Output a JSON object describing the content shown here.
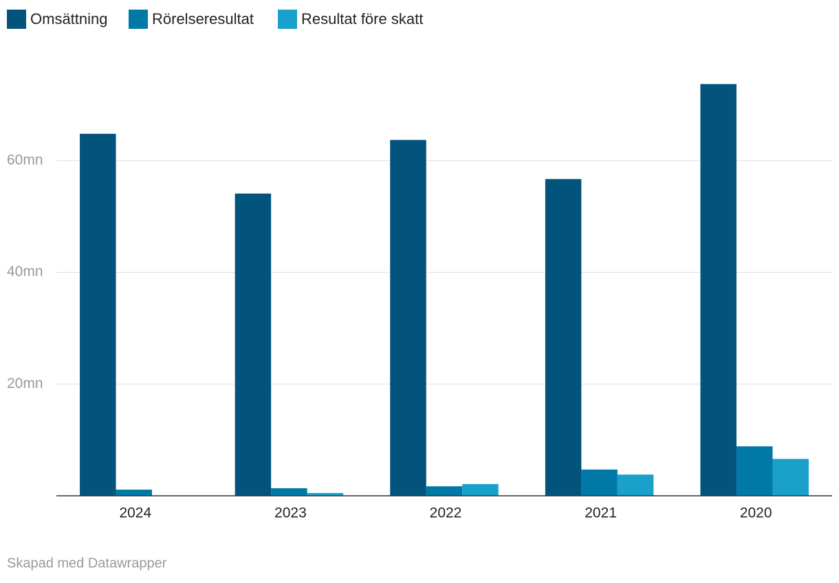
{
  "chart_data": {
    "type": "bar",
    "categories": [
      "2024",
      "2023",
      "2022",
      "2021",
      "2020"
    ],
    "series": [
      {
        "name": "Omsättning",
        "color": "#03547c",
        "values": [
          64.8,
          54.1,
          63.7,
          56.7,
          73.7
        ]
      },
      {
        "name": "Rörelseresultat",
        "color": "#0079a6",
        "values": [
          1.1,
          1.35,
          1.7,
          4.7,
          8.85
        ]
      },
      {
        "name": "Resultat före skatt",
        "color": "#19a1cc",
        "values": [
          0,
          0.5,
          2.1,
          3.8,
          6.6
        ]
      }
    ],
    "ylim": [
      0,
      76.7
    ],
    "yticks": [
      {
        "value": 20,
        "label": "20mn"
      },
      {
        "value": 40,
        "label": "40mn"
      },
      {
        "value": 60,
        "label": "60mn"
      }
    ],
    "grid": true,
    "legend": "top",
    "footer": "Skapad med Datawrapper"
  }
}
